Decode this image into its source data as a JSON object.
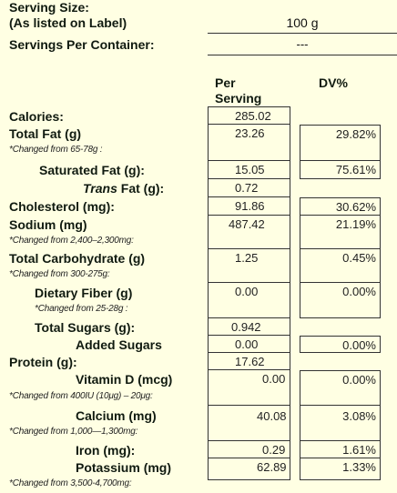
{
  "header": {
    "serving_size_label": "Serving Size:",
    "as_listed_label": "(As listed on Label)",
    "serving_size_value": "100 g",
    "servings_per_container_label": "Servings Per Container:",
    "servings_per_container_value": "---"
  },
  "columns": {
    "per_serving_line1": "Per",
    "per_serving_line2": "Serving",
    "dv": "DV%"
  },
  "rows": {
    "calories": {
      "label": "Calories:",
      "value": "285.02"
    },
    "total_fat": {
      "label": "Total Fat (g)",
      "value": "23.26",
      "dv": "29.82%",
      "note": "*Changed from 65-78g :"
    },
    "saturated_fat": {
      "label": "Saturated Fat (g):",
      "value": "15.05",
      "dv": "75.61%"
    },
    "trans_fat": {
      "label_italic": "Trans",
      "label_rest": " Fat (g):",
      "value": "0.72"
    },
    "cholesterol": {
      "label": "Cholesterol (mg):",
      "value": "91.86",
      "dv": "30.62%"
    },
    "sodium": {
      "label": "Sodium (mg)",
      "value": "487.42",
      "dv": "21.19%",
      "note": "*Changed from 2,400–2,300mg:"
    },
    "total_carbohydrate": {
      "label": "Total Carbohydrate (g)",
      "value": "1.25",
      "dv": "0.45%",
      "note": "*Changed from 300-275g:"
    },
    "dietary_fiber": {
      "label": "Dietary Fiber (g)",
      "value": "0.00",
      "dv": "0.00%",
      "note": "*Changed from 25-28g :"
    },
    "total_sugars": {
      "label": "Total Sugars (g):",
      "value": "0.942"
    },
    "added_sugars": {
      "label": "Added Sugars",
      "value": "0.00",
      "dv": "0.00%"
    },
    "protein": {
      "label": "Protein (g):",
      "value": "17.62"
    },
    "vitamin_d": {
      "label": "Vitamin D (mcg)",
      "value": "0.00",
      "dv": "0.00%",
      "note": "*Changed from 400IU (10μg) – 20μg:"
    },
    "calcium": {
      "label": "Calcium (mg)",
      "value": "40.08",
      "dv": "3.08%",
      "note": "*Changed from 1,000—1,300mg:"
    },
    "iron": {
      "label": "Iron (mg):",
      "value": "0.29",
      "dv": "1.61%"
    },
    "potassium": {
      "label": "Potassium (mg)",
      "value": "62.89",
      "dv": "1.33%",
      "note": "*Changed from 3,500-4,700mg:"
    }
  }
}
